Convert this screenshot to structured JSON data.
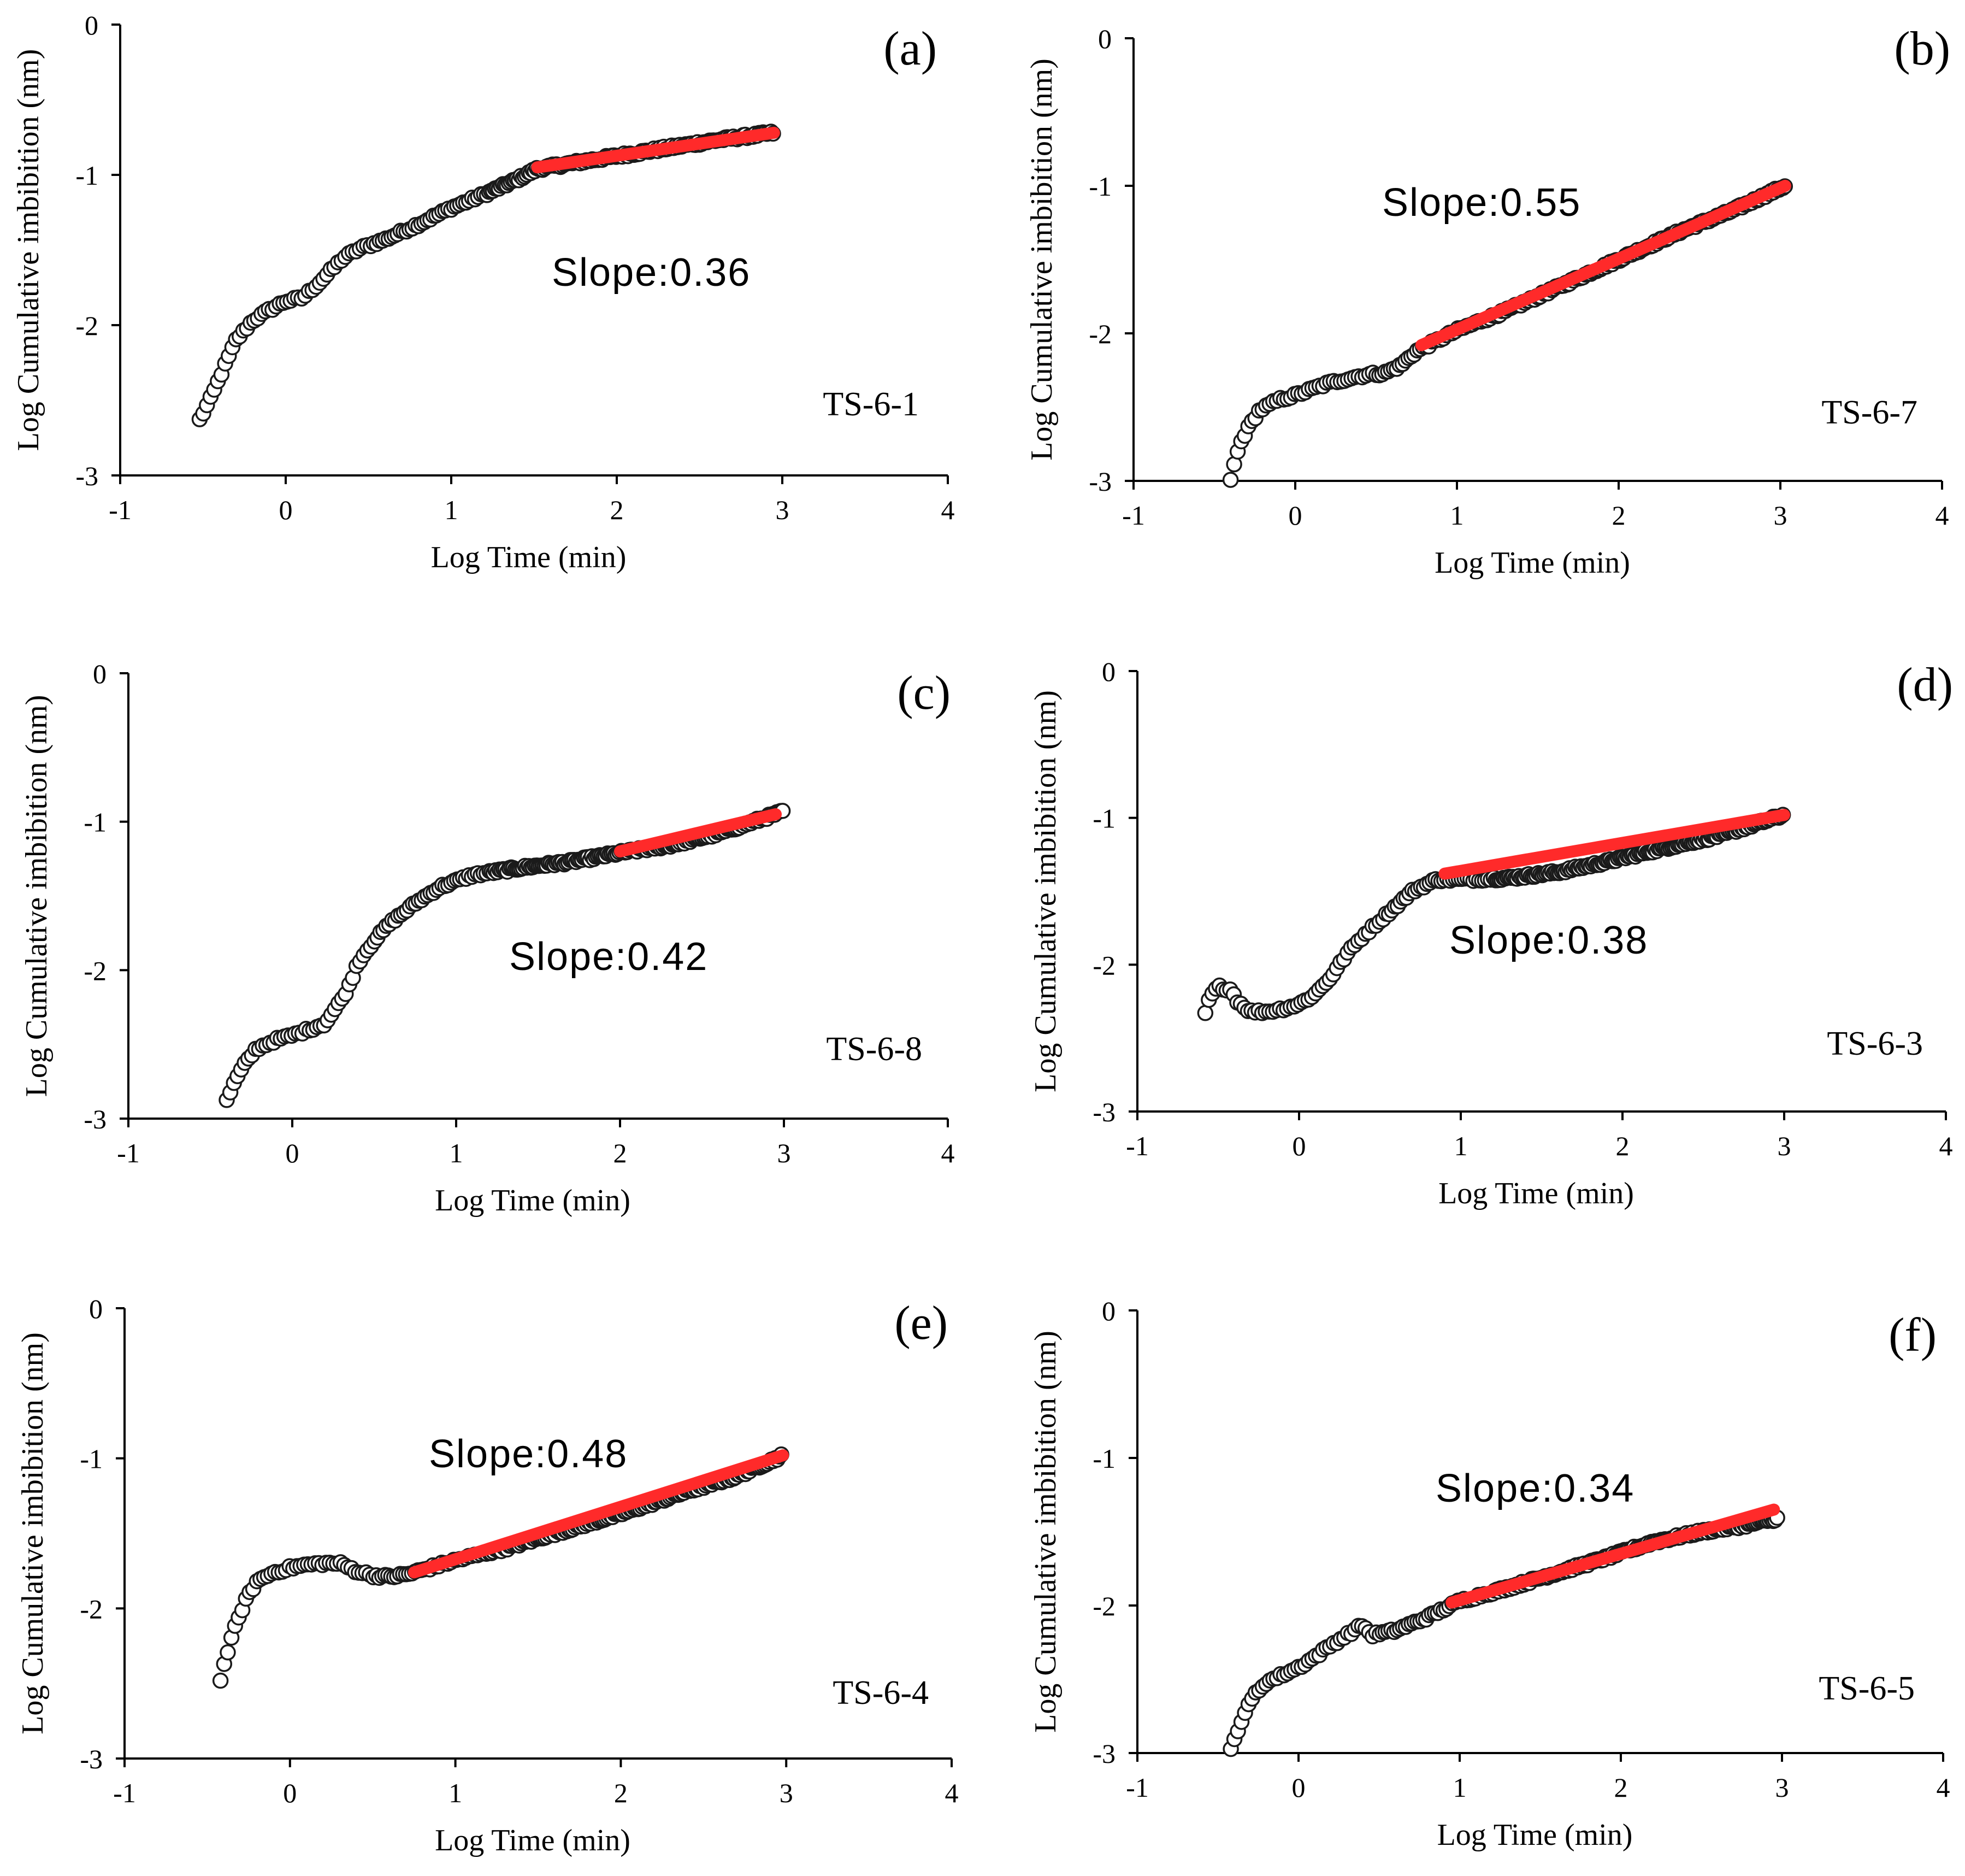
{
  "colors": {
    "fit_line": "#ff2a2a",
    "points": "#1a1a1a",
    "axes": "#000000"
  },
  "chart_data": [
    {
      "type": "scatter",
      "panel_label": "(a)",
      "sample": "TS-6-1",
      "slope_text": "Slope:0.36",
      "xlabel": "Log Time (min)",
      "ylabel": "Log Cumulative imbibition (nm)",
      "xlim": [
        -1,
        4
      ],
      "ylim": [
        -3,
        0
      ],
      "xticks": [
        "-1",
        "0",
        "1",
        "2",
        "3",
        "4"
      ],
      "yticks": [
        "0",
        "-1",
        "-2",
        "-3"
      ],
      "grid": false,
      "curve": [
        [
          -0.52,
          -2.63
        ],
        [
          -0.45,
          -2.48
        ],
        [
          -0.38,
          -2.3
        ],
        [
          -0.3,
          -2.1
        ],
        [
          -0.2,
          -1.97
        ],
        [
          -0.1,
          -1.9
        ],
        [
          0.0,
          -1.84
        ],
        [
          0.1,
          -1.82
        ],
        [
          0.2,
          -1.72
        ],
        [
          0.35,
          -1.55
        ],
        [
          0.45,
          -1.49
        ],
        [
          0.6,
          -1.43
        ],
        [
          0.8,
          -1.33
        ],
        [
          1.0,
          -1.22
        ],
        [
          1.2,
          -1.13
        ],
        [
          1.4,
          -1.03
        ],
        [
          1.52,
          -0.96
        ],
        [
          1.8,
          -0.91
        ],
        [
          2.2,
          -0.84
        ],
        [
          2.6,
          -0.77
        ],
        [
          2.95,
          -0.72
        ]
      ],
      "fit": {
        "x": [
          1.52,
          2.95
        ],
        "y": [
          -0.95,
          -0.72
        ]
      }
    },
    {
      "type": "scatter",
      "panel_label": "(b)",
      "sample": "TS-6-7",
      "slope_text": "Slope:0.55",
      "xlabel": "Log Time (min)",
      "ylabel": "Log Cumulative imbibition (nm)",
      "xlim": [
        -1,
        4
      ],
      "ylim": [
        -3,
        0
      ],
      "xticks": [
        "-1",
        "0",
        "1",
        "2",
        "3",
        "4"
      ],
      "yticks": [
        "0",
        "-1",
        "-2",
        "-3"
      ],
      "grid": false,
      "curve": [
        [
          -0.4,
          -3.0
        ],
        [
          -0.37,
          -2.85
        ],
        [
          -0.33,
          -2.72
        ],
        [
          -0.28,
          -2.62
        ],
        [
          -0.22,
          -2.52
        ],
        [
          -0.1,
          -2.45
        ],
        [
          0.0,
          -2.42
        ],
        [
          0.1,
          -2.38
        ],
        [
          0.2,
          -2.34
        ],
        [
          0.35,
          -2.3
        ],
        [
          0.45,
          -2.28
        ],
        [
          0.55,
          -2.27
        ],
        [
          0.65,
          -2.22
        ],
        [
          0.75,
          -2.12
        ],
        [
          1.0,
          -1.98
        ],
        [
          1.3,
          -1.85
        ],
        [
          1.6,
          -1.7
        ],
        [
          2.0,
          -1.5
        ],
        [
          2.4,
          -1.3
        ],
        [
          2.7,
          -1.17
        ],
        [
          3.03,
          -1.0
        ]
      ],
      "fit": {
        "x": [
          0.78,
          3.03
        ],
        "y": [
          -2.08,
          -1.0
        ]
      }
    },
    {
      "type": "scatter",
      "panel_label": "(c)",
      "sample": "TS-6-8",
      "slope_text": "Slope:0.42",
      "xlabel": "Log Time (min)",
      "ylabel": "Log Cumulative imbibition (nm)",
      "xlim": [
        -1,
        4
      ],
      "ylim": [
        -3,
        0
      ],
      "xticks": [
        "-1",
        "0",
        "1",
        "2",
        "3",
        "4"
      ],
      "yticks": [
        "0",
        "-1",
        "-2",
        "-3"
      ],
      "grid": false,
      "curve": [
        [
          -0.4,
          -2.88
        ],
        [
          -0.35,
          -2.75
        ],
        [
          -0.3,
          -2.65
        ],
        [
          -0.22,
          -2.53
        ],
        [
          -0.1,
          -2.47
        ],
        [
          0.0,
          -2.44
        ],
        [
          0.1,
          -2.4
        ],
        [
          0.2,
          -2.36
        ],
        [
          0.3,
          -2.2
        ],
        [
          0.35,
          -2.1
        ],
        [
          0.4,
          -1.95
        ],
        [
          0.5,
          -1.8
        ],
        [
          0.6,
          -1.68
        ],
        [
          0.75,
          -1.55
        ],
        [
          0.9,
          -1.44
        ],
        [
          1.1,
          -1.36
        ],
        [
          1.4,
          -1.31
        ],
        [
          1.7,
          -1.27
        ],
        [
          2.0,
          -1.21
        ],
        [
          2.3,
          -1.16
        ],
        [
          2.6,
          -1.08
        ],
        [
          3.0,
          -0.93
        ]
      ],
      "fit": {
        "x": [
          2.0,
          2.95
        ],
        "y": [
          -1.2,
          -0.95
        ]
      }
    },
    {
      "type": "scatter",
      "panel_label": "(d)",
      "sample": "TS-6-3",
      "slope_text": "Slope:0.38",
      "xlabel": "Log Time (min)",
      "ylabel": "Log Cumulative imbibition (nm)",
      "xlim": [
        -1,
        4
      ],
      "ylim": [
        -3,
        0
      ],
      "xticks": [
        "-1",
        "0",
        "1",
        "2",
        "3",
        "4"
      ],
      "yticks": [
        "0",
        "-1",
        "-2",
        "-3"
      ],
      "grid": false,
      "curve": [
        [
          -0.58,
          -2.33
        ],
        [
          -0.55,
          -2.22
        ],
        [
          -0.5,
          -2.15
        ],
        [
          -0.42,
          -2.17
        ],
        [
          -0.38,
          -2.25
        ],
        [
          -0.3,
          -2.32
        ],
        [
          -0.2,
          -2.32
        ],
        [
          -0.1,
          -2.3
        ],
        [
          0.0,
          -2.27
        ],
        [
          0.1,
          -2.2
        ],
        [
          0.2,
          -2.08
        ],
        [
          0.3,
          -1.92
        ],
        [
          0.4,
          -1.8
        ],
        [
          0.5,
          -1.7
        ],
        [
          0.6,
          -1.6
        ],
        [
          0.7,
          -1.5
        ],
        [
          0.85,
          -1.42
        ],
        [
          1.0,
          -1.42
        ],
        [
          1.3,
          -1.41
        ],
        [
          1.6,
          -1.37
        ],
        [
          1.9,
          -1.3
        ],
        [
          2.2,
          -1.22
        ],
        [
          2.6,
          -1.12
        ],
        [
          3.0,
          -0.98
        ]
      ],
      "fit": {
        "x": [
          0.9,
          3.0
        ],
        "y": [
          -1.38,
          -0.98
        ]
      }
    },
    {
      "type": "scatter",
      "panel_label": "(e)",
      "sample": "TS-6-4",
      "slope_text": "Slope:0.48",
      "xlabel": "Log Time (min)",
      "ylabel": "Log Cumulative imbibition (nm)",
      "xlim": [
        -1,
        4
      ],
      "ylim": [
        -3,
        0
      ],
      "xticks": [
        "-1",
        "0",
        "1",
        "2",
        "3",
        "4"
      ],
      "yticks": [
        "0",
        "-1",
        "-2",
        "-3"
      ],
      "grid": false,
      "curve": [
        [
          -0.42,
          -2.47
        ],
        [
          -0.38,
          -2.3
        ],
        [
          -0.33,
          -2.12
        ],
        [
          -0.27,
          -1.95
        ],
        [
          -0.2,
          -1.82
        ],
        [
          -0.1,
          -1.76
        ],
        [
          0.0,
          -1.73
        ],
        [
          0.1,
          -1.71
        ],
        [
          0.2,
          -1.7
        ],
        [
          0.3,
          -1.7
        ],
        [
          0.4,
          -1.75
        ],
        [
          0.5,
          -1.78
        ],
        [
          0.6,
          -1.79
        ],
        [
          0.72,
          -1.77
        ],
        [
          1.0,
          -1.68
        ],
        [
          1.3,
          -1.6
        ],
        [
          1.6,
          -1.5
        ],
        [
          2.0,
          -1.37
        ],
        [
          2.4,
          -1.22
        ],
        [
          2.7,
          -1.12
        ],
        [
          2.98,
          -0.98
        ]
      ],
      "fit": {
        "x": [
          0.75,
          2.98
        ],
        "y": [
          -1.76,
          -0.98
        ]
      }
    },
    {
      "type": "scatter",
      "panel_label": "(f)",
      "sample": "TS-6-5",
      "slope_text": "Slope:0.34",
      "xlabel": "Log Time (min)",
      "ylabel": "Log Cumulative imbibition (nm)",
      "xlim": [
        -1,
        4
      ],
      "ylim": [
        -3,
        0
      ],
      "xticks": [
        "-1",
        "0",
        "1",
        "2",
        "3",
        "4"
      ],
      "yticks": [
        "0",
        "-1",
        "-2",
        "-3"
      ],
      "grid": false,
      "curve": [
        [
          -0.42,
          -2.98
        ],
        [
          -0.38,
          -2.85
        ],
        [
          -0.33,
          -2.72
        ],
        [
          -0.27,
          -2.6
        ],
        [
          -0.2,
          -2.52
        ],
        [
          -0.1,
          -2.47
        ],
        [
          0.0,
          -2.42
        ],
        [
          0.1,
          -2.35
        ],
        [
          0.2,
          -2.27
        ],
        [
          0.3,
          -2.2
        ],
        [
          0.4,
          -2.13
        ],
        [
          0.45,
          -2.2
        ],
        [
          0.6,
          -2.17
        ],
        [
          0.8,
          -2.08
        ],
        [
          1.0,
          -1.97
        ],
        [
          1.3,
          -1.88
        ],
        [
          1.6,
          -1.78
        ],
        [
          1.9,
          -1.68
        ],
        [
          2.2,
          -1.57
        ],
        [
          2.5,
          -1.5
        ],
        [
          2.75,
          -1.46
        ],
        [
          2.97,
          -1.41
        ]
      ],
      "fit": {
        "x": [
          0.95,
          2.95
        ],
        "y": [
          -1.98,
          -1.35
        ]
      }
    }
  ]
}
